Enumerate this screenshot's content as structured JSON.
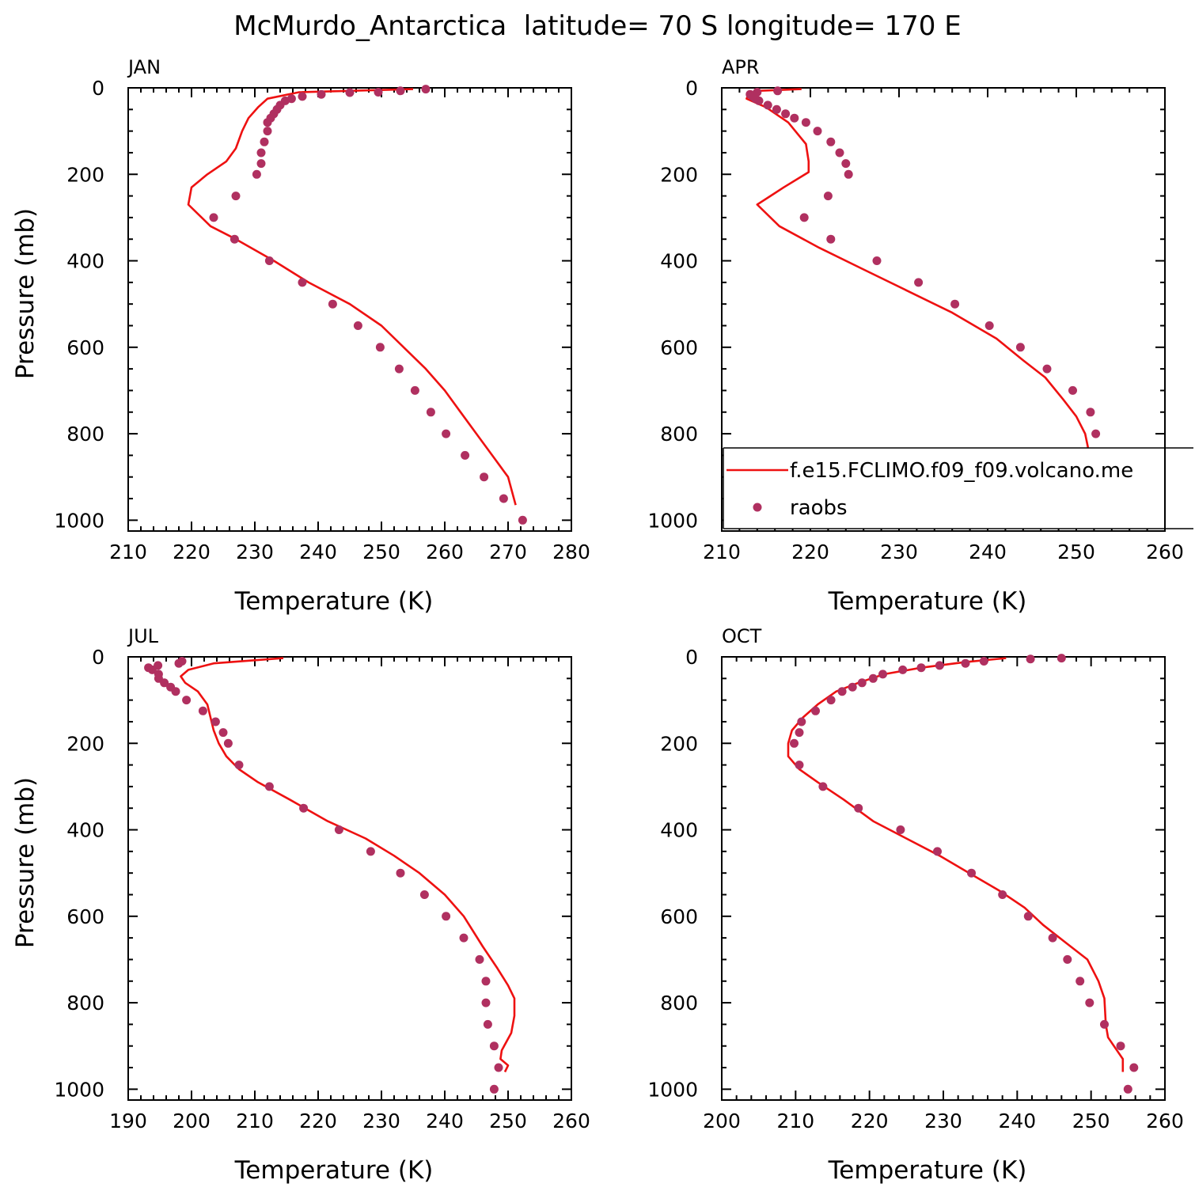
{
  "title": "McMurdo_Antarctica  latitude= 70 S longitude= 170 E",
  "legend": {
    "model_label": "f.e15.FCLIMO.f09_f09.volcano.me",
    "obs_label": "raobs"
  },
  "colors": {
    "model": "#ee1111",
    "obs": "#b03060",
    "axis": "#000000"
  },
  "chart_data": [
    {
      "type": "line",
      "panel": "JAN",
      "xlabel": "Temperature (K)",
      "ylabel": "Pressure (mb)",
      "xlim": [
        210,
        280
      ],
      "ylim": [
        0,
        1025
      ],
      "xticks": [
        210,
        220,
        230,
        240,
        250,
        260,
        270,
        280
      ],
      "yticks": [
        0,
        200,
        400,
        600,
        800,
        1000
      ],
      "series": [
        {
          "name": "f.e15.FCLIMO.f09_f09.volcano.me",
          "style": "line",
          "points": [
            [
              255.0,
              3
            ],
            [
              237.0,
              10
            ],
            [
              232.0,
              25
            ],
            [
              230.5,
              45
            ],
            [
              229.0,
              70
            ],
            [
              228.0,
              100
            ],
            [
              227.0,
              140
            ],
            [
              225.5,
              170
            ],
            [
              222.5,
              200
            ],
            [
              220.0,
              230
            ],
            [
              219.5,
              270
            ],
            [
              223.0,
              320
            ],
            [
              227.0,
              350
            ],
            [
              233.0,
              400
            ],
            [
              238.5,
              450
            ],
            [
              245.0,
              500
            ],
            [
              250.0,
              550
            ],
            [
              253.5,
              600
            ],
            [
              257.0,
              650
            ],
            [
              260.0,
              700
            ],
            [
              262.5,
              750
            ],
            [
              265.0,
              800
            ],
            [
              267.5,
              850
            ],
            [
              270.0,
              900
            ],
            [
              271.2,
              965
            ]
          ]
        },
        {
          "name": "raobs",
          "style": "scatter",
          "points": [
            [
              257.0,
              3
            ],
            [
              253.0,
              7
            ],
            [
              249.5,
              10
            ],
            [
              245.0,
              11
            ],
            [
              240.5,
              15
            ],
            [
              237.5,
              20
            ],
            [
              235.8,
              25
            ],
            [
              234.8,
              30
            ],
            [
              234.0,
              40
            ],
            [
              233.5,
              50
            ],
            [
              233.0,
              60
            ],
            [
              232.5,
              70
            ],
            [
              232.0,
              80
            ],
            [
              232.0,
              100
            ],
            [
              231.5,
              125
            ],
            [
              231.0,
              150
            ],
            [
              231.0,
              175
            ],
            [
              230.3,
              200
            ],
            [
              227.0,
              250
            ],
            [
              223.5,
              300
            ],
            [
              226.8,
              350
            ],
            [
              232.3,
              400
            ],
            [
              237.5,
              450
            ],
            [
              242.3,
              500
            ],
            [
              246.3,
              550
            ],
            [
              249.8,
              600
            ],
            [
              252.8,
              650
            ],
            [
              255.3,
              700
            ],
            [
              257.8,
              750
            ],
            [
              260.2,
              800
            ],
            [
              263.2,
              850
            ],
            [
              266.2,
              900
            ],
            [
              269.3,
              950
            ],
            [
              272.3,
              1000
            ]
          ]
        }
      ]
    },
    {
      "type": "line",
      "panel": "APR",
      "xlabel": "Temperature (K)",
      "ylabel": "",
      "xlim": [
        210,
        260
      ],
      "ylim": [
        0,
        1025
      ],
      "xticks": [
        210,
        220,
        230,
        240,
        250,
        260
      ],
      "yticks": [
        0,
        200,
        400,
        600,
        800,
        1000
      ],
      "legend_position": "bottom-right",
      "series": [
        {
          "name": "f.e15.FCLIMO.f09_f09.volcano.me",
          "style": "line",
          "points": [
            [
              219.0,
              3
            ],
            [
              214.0,
              7
            ],
            [
              213.0,
              15
            ],
            [
              212.8,
              25
            ],
            [
              215.0,
              45
            ],
            [
              217.5,
              80
            ],
            [
              219.5,
              130
            ],
            [
              219.8,
              170
            ],
            [
              219.8,
              195
            ],
            [
              217.0,
              230
            ],
            [
              215.5,
              250
            ],
            [
              214.0,
              270
            ],
            [
              216.5,
              320
            ],
            [
              221.0,
              370
            ],
            [
              226.0,
              420
            ],
            [
              231.0,
              470
            ],
            [
              236.0,
              520
            ],
            [
              241.0,
              580
            ],
            [
              244.0,
              630
            ],
            [
              246.5,
              670
            ],
            [
              248.5,
              720
            ],
            [
              250.0,
              760
            ],
            [
              251.0,
              800
            ],
            [
              251.3,
              830
            ],
            [
              251.3,
              880
            ],
            [
              251.5,
              905
            ],
            [
              253.0,
              930
            ],
            [
              254.8,
              955
            ]
          ]
        },
        {
          "name": "raobs",
          "style": "scatter",
          "points": [
            [
              216.3,
              7
            ],
            [
              214.0,
              10
            ],
            [
              213.2,
              15
            ],
            [
              213.5,
              20
            ],
            [
              213.8,
              25
            ],
            [
              214.2,
              30
            ],
            [
              215.2,
              40
            ],
            [
              216.2,
              50
            ],
            [
              217.2,
              60
            ],
            [
              218.2,
              70
            ],
            [
              219.5,
              80
            ],
            [
              220.8,
              100
            ],
            [
              222.3,
              125
            ],
            [
              223.3,
              150
            ],
            [
              224.0,
              175
            ],
            [
              224.3,
              200
            ],
            [
              222.0,
              250
            ],
            [
              219.3,
              300
            ],
            [
              222.3,
              350
            ],
            [
              227.5,
              400
            ],
            [
              232.2,
              450
            ],
            [
              236.3,
              500
            ],
            [
              240.2,
              550
            ],
            [
              243.7,
              600
            ],
            [
              246.7,
              650
            ],
            [
              249.6,
              700
            ],
            [
              251.6,
              750
            ],
            [
              252.2,
              800
            ],
            [
              252.4,
              850
            ],
            [
              254.0,
              900
            ],
            [
              255.8,
              950
            ],
            [
              256.2,
              1000
            ]
          ]
        }
      ]
    },
    {
      "type": "line",
      "panel": "JUL",
      "xlabel": "Temperature (K)",
      "ylabel": "Pressure (mb)",
      "xlim": [
        190,
        260
      ],
      "ylim": [
        0,
        1025
      ],
      "xticks": [
        190,
        200,
        210,
        220,
        230,
        240,
        250,
        260
      ],
      "yticks": [
        0,
        200,
        400,
        600,
        800,
        1000
      ],
      "series": [
        {
          "name": "f.e15.FCLIMO.f09_f09.volcano.me",
          "style": "line",
          "points": [
            [
              214.5,
              3
            ],
            [
              203.5,
              15
            ],
            [
              199.5,
              30
            ],
            [
              198.3,
              45
            ],
            [
              199.0,
              60
            ],
            [
              201.0,
              80
            ],
            [
              202.5,
              110
            ],
            [
              203.0,
              140
            ],
            [
              203.5,
              170
            ],
            [
              204.3,
              200
            ],
            [
              205.5,
              230
            ],
            [
              207.5,
              260
            ],
            [
              210.5,
              290
            ],
            [
              215.5,
              330
            ],
            [
              221.5,
              380
            ],
            [
              227.5,
              420
            ],
            [
              232.0,
              460
            ],
            [
              236.0,
              500
            ],
            [
              240.0,
              550
            ],
            [
              243.0,
              600
            ],
            [
              246.0,
              670
            ],
            [
              248.3,
              720
            ],
            [
              250.0,
              760
            ],
            [
              251.0,
              790
            ],
            [
              251.0,
              830
            ],
            [
              250.5,
              870
            ],
            [
              249.0,
              910
            ],
            [
              248.8,
              930
            ],
            [
              250.0,
              945
            ],
            [
              249.5,
              960
            ]
          ]
        },
        {
          "name": "raobs",
          "style": "scatter",
          "points": [
            [
              198.5,
              10
            ],
            [
              198.0,
              15
            ],
            [
              194.7,
              20
            ],
            [
              193.2,
              25
            ],
            [
              193.8,
              30
            ],
            [
              194.8,
              40
            ],
            [
              194.8,
              50
            ],
            [
              195.7,
              60
            ],
            [
              196.7,
              70
            ],
            [
              197.5,
              80
            ],
            [
              199.2,
              100
            ],
            [
              201.8,
              125
            ],
            [
              203.8,
              150
            ],
            [
              205.0,
              175
            ],
            [
              205.8,
              200
            ],
            [
              207.5,
              250
            ],
            [
              212.3,
              300
            ],
            [
              217.7,
              350
            ],
            [
              223.3,
              400
            ],
            [
              228.3,
              450
            ],
            [
              233.0,
              500
            ],
            [
              236.8,
              550
            ],
            [
              240.2,
              600
            ],
            [
              243.0,
              650
            ],
            [
              245.5,
              700
            ],
            [
              246.5,
              750
            ],
            [
              246.5,
              800
            ],
            [
              246.8,
              850
            ],
            [
              247.8,
              900
            ],
            [
              248.5,
              950
            ],
            [
              247.8,
              1000
            ]
          ]
        }
      ]
    },
    {
      "type": "line",
      "panel": "OCT",
      "xlabel": "Temperature (K)",
      "ylabel": "",
      "xlim": [
        200,
        260
      ],
      "ylim": [
        0,
        1025
      ],
      "xticks": [
        200,
        210,
        220,
        230,
        240,
        250,
        260
      ],
      "yticks": [
        0,
        200,
        400,
        600,
        800,
        1000
      ],
      "series": [
        {
          "name": "f.e15.FCLIMO.f09_f09.volcano.me",
          "style": "line",
          "points": [
            [
              238.5,
              3
            ],
            [
              233.0,
              12
            ],
            [
              227.0,
              25
            ],
            [
              222.0,
              40
            ],
            [
              218.5,
              60
            ],
            [
              215.5,
              80
            ],
            [
              213.0,
              110
            ],
            [
              211.0,
              140
            ],
            [
              209.5,
              170
            ],
            [
              209.0,
              200
            ],
            [
              209.0,
              230
            ],
            [
              210.5,
              260
            ],
            [
              213.0,
              290
            ],
            [
              216.5,
              330
            ],
            [
              220.5,
              380
            ],
            [
              225.0,
              420
            ],
            [
              229.5,
              460
            ],
            [
              233.5,
              500
            ],
            [
              237.5,
              540
            ],
            [
              241.0,
              580
            ],
            [
              243.5,
              620
            ],
            [
              246.5,
              660
            ],
            [
              249.5,
              700
            ],
            [
              251.0,
              750
            ],
            [
              251.8,
              790
            ],
            [
              252.0,
              850
            ],
            [
              252.3,
              880
            ],
            [
              253.5,
              910
            ],
            [
              254.3,
              930
            ],
            [
              254.3,
              960
            ]
          ]
        },
        {
          "name": "raobs",
          "style": "scatter",
          "points": [
            [
              246.0,
              3
            ],
            [
              241.8,
              5
            ],
            [
              235.5,
              10
            ],
            [
              233.0,
              15
            ],
            [
              229.5,
              20
            ],
            [
              227.0,
              25
            ],
            [
              224.5,
              30
            ],
            [
              221.8,
              40
            ],
            [
              220.5,
              50
            ],
            [
              219.0,
              60
            ],
            [
              217.7,
              70
            ],
            [
              216.3,
              80
            ],
            [
              214.8,
              100
            ],
            [
              212.7,
              125
            ],
            [
              210.8,
              150
            ],
            [
              210.5,
              175
            ],
            [
              209.8,
              200
            ],
            [
              210.5,
              250
            ],
            [
              213.7,
              300
            ],
            [
              218.5,
              350
            ],
            [
              224.2,
              400
            ],
            [
              229.2,
              450
            ],
            [
              233.8,
              500
            ],
            [
              238.0,
              550
            ],
            [
              241.5,
              600
            ],
            [
              244.8,
              650
            ],
            [
              246.8,
              700
            ],
            [
              248.5,
              750
            ],
            [
              249.8,
              800
            ],
            [
              251.8,
              850
            ],
            [
              254.0,
              900
            ],
            [
              255.8,
              950
            ],
            [
              255.0,
              1000
            ]
          ]
        }
      ]
    }
  ]
}
